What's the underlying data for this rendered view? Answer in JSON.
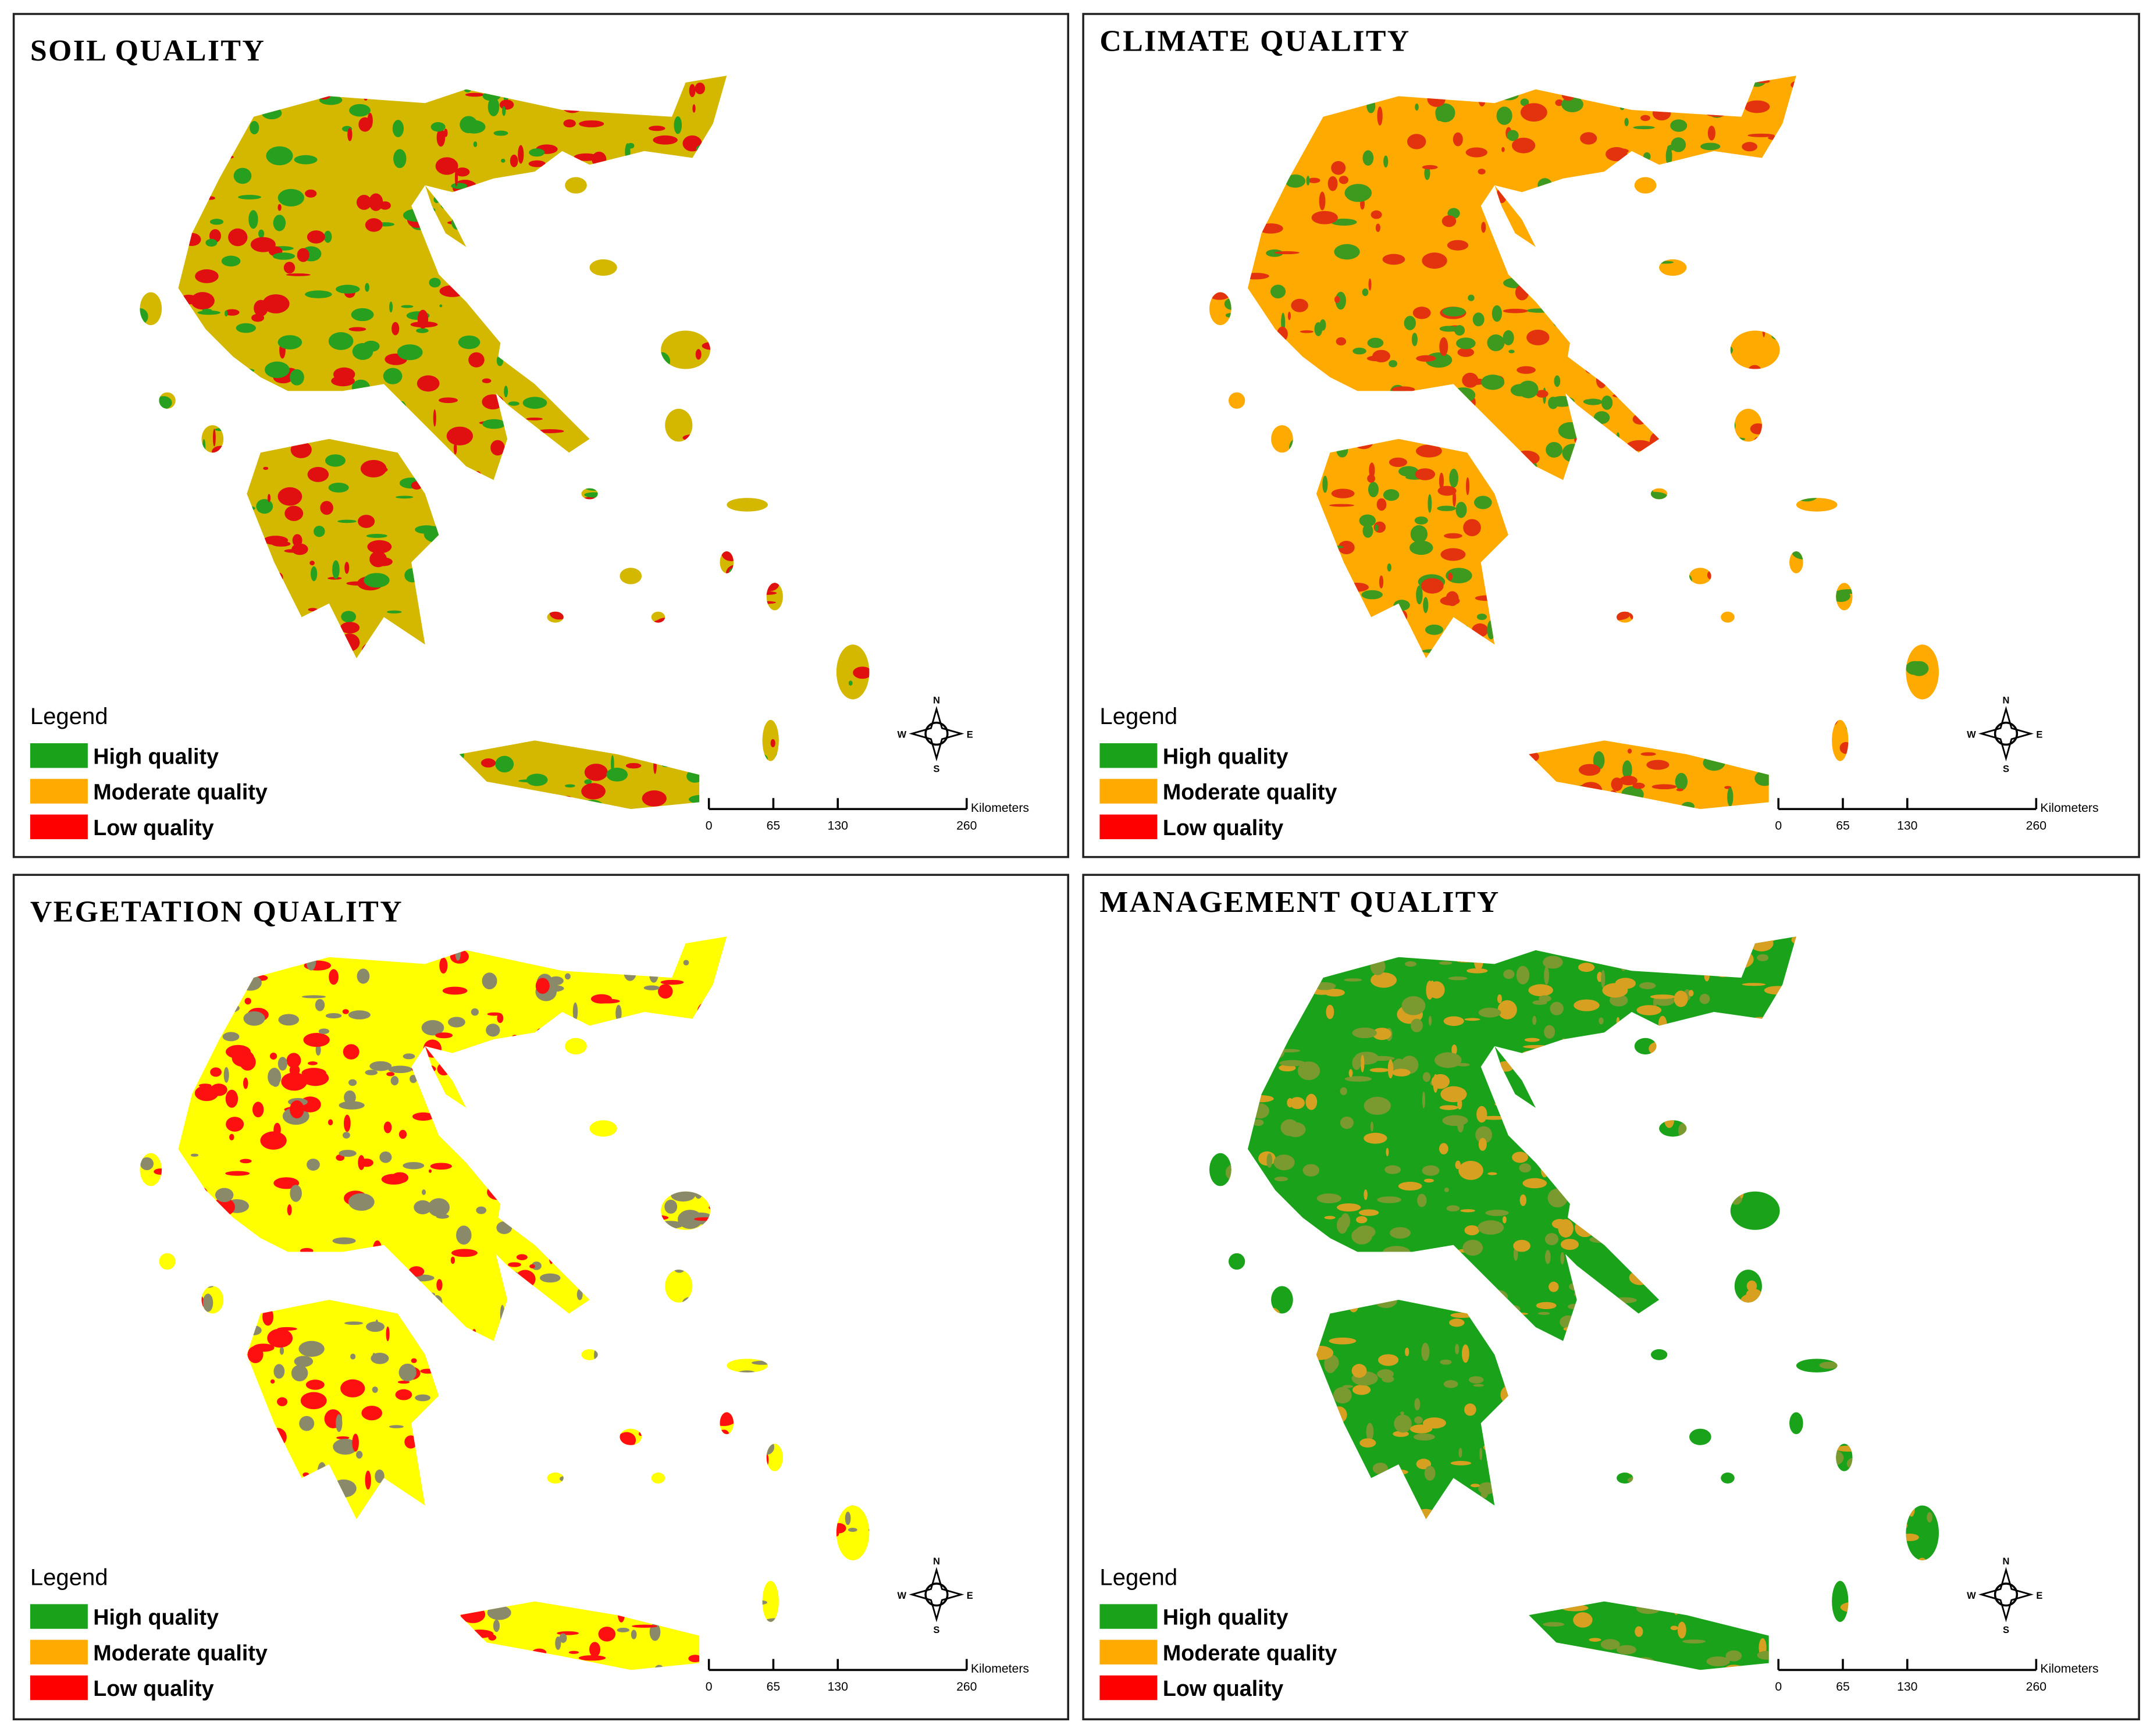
{
  "panels": [
    {
      "title": "SOIL QUALITY",
      "map_colors": [
        "#d4b800",
        "#27a020",
        "#e01010"
      ]
    },
    {
      "title": "CLIMATE QUALITY",
      "map_colors": [
        "#ffaa00",
        "#3d9a1e",
        "#e2330e"
      ]
    },
    {
      "title": "VEGETATION QUALITY",
      "map_colors": [
        "#ffff00",
        "#ff1010",
        "#8a8a6a"
      ]
    },
    {
      "title": "MANAGEMENT QUALITY",
      "map_colors": [
        "#1aa31a",
        "#d8a020",
        "#7a9a30"
      ]
    }
  ],
  "legend": {
    "title": "Legend",
    "items": [
      {
        "label": "High quality",
        "color": "#1aa31a"
      },
      {
        "label": "Moderate quality",
        "color": "#ffaa00"
      },
      {
        "label": "Low quality",
        "color": "#ff0000"
      }
    ]
  },
  "scale": {
    "ticks": [
      0,
      65,
      130,
      260
    ],
    "unit": "Kilometers"
  },
  "compass": {
    "n": "N",
    "e": "E",
    "s": "S",
    "w": "W"
  }
}
